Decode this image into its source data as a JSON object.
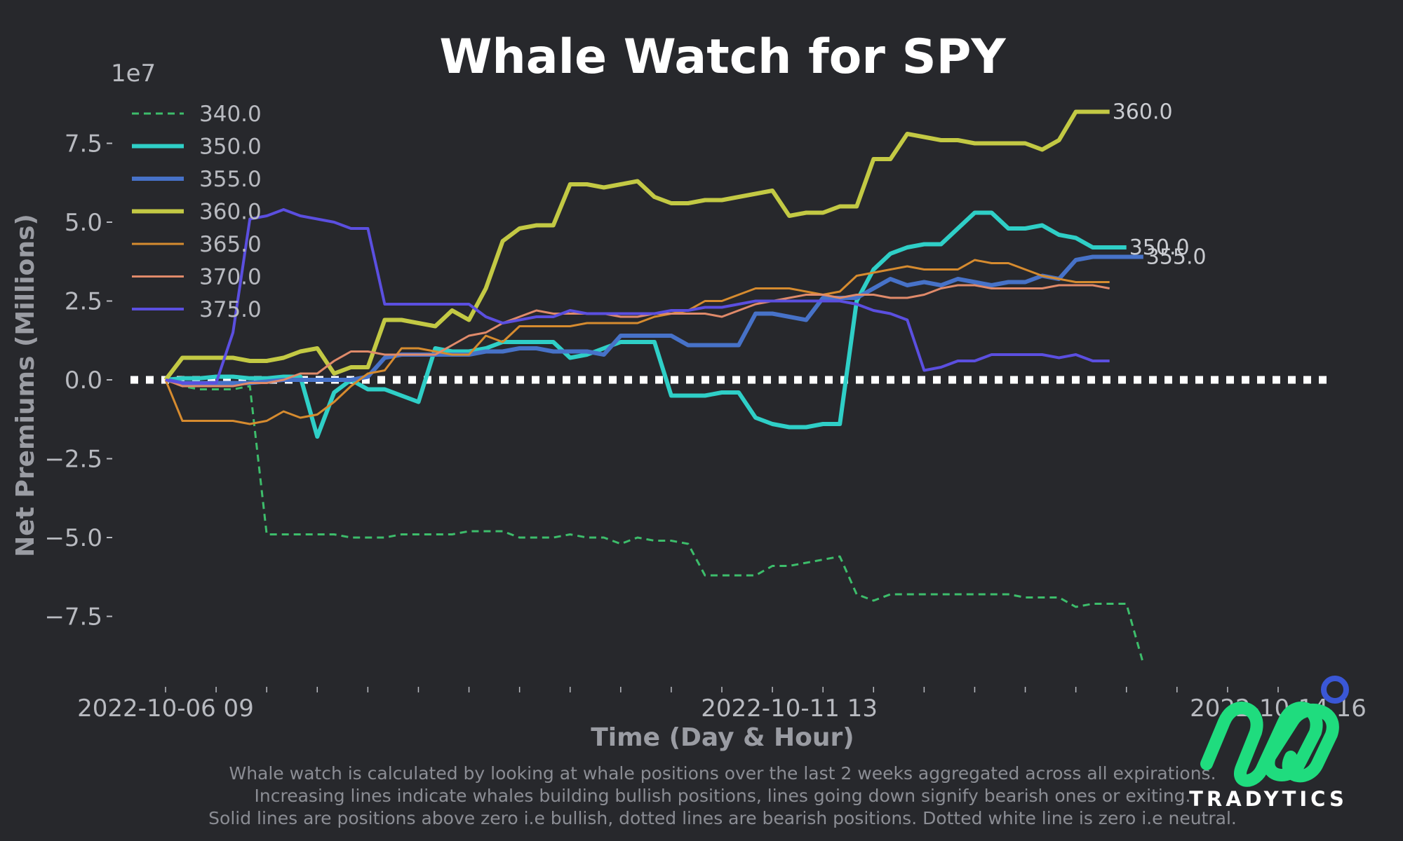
{
  "chart_data": {
    "type": "line",
    "title": "Whale Watch for SPY",
    "xlabel": "Time (Day & Hour)",
    "ylabel": "Net Premiums (Millions)",
    "y_offset_label": "1e7",
    "ylim": [
      -9.5,
      9.5
    ],
    "yticks": [
      "7.5",
      "5.0",
      "2.5",
      "0.0",
      "−2.5",
      "−5.0",
      "−7.5"
    ],
    "ytick_values": [
      7.5,
      5.0,
      2.5,
      0.0,
      -2.5,
      -5.0,
      -7.5
    ],
    "xtick_labels": [
      "2022-10-06 09",
      "2022-10-11 13",
      "2022-10-14 16"
    ],
    "xtick_index": [
      0,
      37,
      66
    ],
    "x_count": 66,
    "zero_line": true,
    "legend_position": "upper-left",
    "series": [
      {
        "name": "340.0",
        "color": "#3dbd6b",
        "style": "dashed",
        "width": 3,
        "values": [
          0,
          -0.2,
          -0.3,
          -0.3,
          -0.3,
          -0.2,
          -4.9,
          -4.9,
          -4.9,
          -4.9,
          -4.9,
          -5.0,
          -5.0,
          -5.0,
          -4.9,
          -4.9,
          -4.9,
          -4.9,
          -4.8,
          -4.8,
          -4.8,
          -5.0,
          -5.0,
          -5.0,
          -4.9,
          -5.0,
          -5.0,
          -5.2,
          -5.0,
          -5.1,
          -5.1,
          -5.2,
          -6.2,
          -6.2,
          -6.2,
          -6.2,
          -5.9,
          -5.9,
          -5.8,
          -5.7,
          -5.6,
          -6.8,
          -7.0,
          -6.8,
          -6.8,
          -6.8,
          -6.8,
          -6.8,
          -6.8,
          -6.8,
          -6.8,
          -6.9,
          -6.9,
          -6.9,
          -7.2,
          -7.1,
          -7.1,
          -7.1,
          -9.0
        ]
      },
      {
        "name": "350.0",
        "color": "#2fcfc7",
        "style": "solid",
        "width": 6,
        "values": [
          0,
          0.05,
          0.05,
          0.1,
          0.1,
          0.05,
          0.05,
          0.1,
          0.1,
          -1.8,
          -0.4,
          0,
          -0.3,
          -0.3,
          -0.5,
          -0.7,
          1.0,
          0.9,
          0.9,
          1.0,
          1.2,
          1.2,
          1.2,
          1.2,
          0.7,
          0.8,
          1.0,
          1.2,
          1.2,
          1.2,
          -0.5,
          -0.5,
          -0.5,
          -0.4,
          -0.4,
          -1.2,
          -1.4,
          -1.5,
          -1.5,
          -1.4,
          -1.4,
          2.5,
          3.5,
          4.0,
          4.2,
          4.3,
          4.3,
          4.8,
          5.3,
          5.3,
          4.8,
          4.8,
          4.9,
          4.6,
          4.5,
          4.2,
          4.2,
          4.2
        ]
      },
      {
        "name": "355.0",
        "color": "#4772c8",
        "style": "solid",
        "width": 6,
        "values": [
          0,
          -0.1,
          -0.1,
          -0.1,
          -0.1,
          -0.1,
          -0.05,
          0,
          0,
          0,
          0,
          0,
          0.1,
          0.7,
          0.8,
          0.8,
          0.8,
          0.8,
          0.8,
          0.9,
          0.9,
          1.0,
          1.0,
          0.9,
          0.9,
          0.9,
          0.8,
          1.4,
          1.4,
          1.4,
          1.4,
          1.1,
          1.1,
          1.1,
          1.1,
          2.1,
          2.1,
          2.0,
          1.9,
          2.6,
          2.6,
          2.6,
          2.9,
          3.2,
          3.0,
          3.1,
          3.0,
          3.2,
          3.1,
          3.0,
          3.1,
          3.1,
          3.3,
          3.2,
          3.8,
          3.9,
          3.9,
          3.9,
          3.9
        ]
      },
      {
        "name": "360.0",
        "color": "#c3c944",
        "style": "solid",
        "width": 6,
        "values": [
          0,
          0.7,
          0.7,
          0.7,
          0.7,
          0.6,
          0.6,
          0.7,
          0.9,
          1.0,
          0.2,
          0.4,
          0.4,
          1.9,
          1.9,
          1.8,
          1.7,
          2.2,
          1.9,
          2.9,
          4.4,
          4.8,
          4.9,
          4.9,
          6.2,
          6.2,
          6.1,
          6.2,
          6.3,
          5.8,
          5.6,
          5.6,
          5.7,
          5.7,
          5.8,
          5.9,
          6.0,
          5.2,
          5.3,
          5.3,
          5.5,
          5.5,
          7.0,
          7.0,
          7.8,
          7.7,
          7.6,
          7.6,
          7.5,
          7.5,
          7.5,
          7.5,
          7.3,
          7.6,
          8.5,
          8.5,
          8.5
        ]
      },
      {
        "name": "365.0",
        "color": "#d68b2f",
        "style": "solid",
        "width": 3,
        "values": [
          0,
          -1.3,
          -1.3,
          -1.3,
          -1.3,
          -1.4,
          -1.3,
          -1.0,
          -1.2,
          -1.1,
          -0.7,
          -0.2,
          0.2,
          0.3,
          1.0,
          1.0,
          0.9,
          0.8,
          0.8,
          1.4,
          1.2,
          1.7,
          1.7,
          1.7,
          1.7,
          1.8,
          1.8,
          1.8,
          1.8,
          2.0,
          2.1,
          2.2,
          2.5,
          2.5,
          2.7,
          2.9,
          2.9,
          2.9,
          2.8,
          2.7,
          2.8,
          3.3,
          3.4,
          3.5,
          3.6,
          3.5,
          3.5,
          3.5,
          3.8,
          3.7,
          3.7,
          3.5,
          3.3,
          3.2,
          3.1,
          3.1,
          3.1
        ]
      },
      {
        "name": "370.0",
        "color": "#e08a6a",
        "style": "solid",
        "width": 3,
        "values": [
          0,
          -0.2,
          -0.2,
          -0.2,
          -0.2,
          -0.1,
          -0.1,
          0,
          0.2,
          0.2,
          0.6,
          0.9,
          0.9,
          0.8,
          0.8,
          0.8,
          0.8,
          1.1,
          1.4,
          1.5,
          1.8,
          2.0,
          2.2,
          2.1,
          2.1,
          2.1,
          2.1,
          2.0,
          2.0,
          2.1,
          2.1,
          2.1,
          2.1,
          2.0,
          2.2,
          2.4,
          2.5,
          2.6,
          2.7,
          2.7,
          2.6,
          2.7,
          2.7,
          2.6,
          2.6,
          2.7,
          2.9,
          3.0,
          3.0,
          2.9,
          2.9,
          2.9,
          2.9,
          3.0,
          3.0,
          3.0,
          2.9
        ]
      },
      {
        "name": "375.0",
        "color": "#5b4fe0",
        "style": "solid",
        "width": 4,
        "values": [
          0,
          -0.1,
          -0.1,
          -0.1,
          1.5,
          5.1,
          5.2,
          5.4,
          5.2,
          5.1,
          5.0,
          4.8,
          4.8,
          2.4,
          2.4,
          2.4,
          2.4,
          2.4,
          2.4,
          2.0,
          1.8,
          1.9,
          2.0,
          2.0,
          2.2,
          2.1,
          2.1,
          2.1,
          2.1,
          2.1,
          2.2,
          2.2,
          2.3,
          2.3,
          2.4,
          2.5,
          2.5,
          2.5,
          2.5,
          2.5,
          2.5,
          2.4,
          2.2,
          2.1,
          1.9,
          0.3,
          0.4,
          0.6,
          0.6,
          0.8,
          0.8,
          0.8,
          0.8,
          0.7,
          0.8,
          0.6,
          0.6
        ]
      }
    ],
    "end_labels": [
      "360.0",
      "350.0",
      "355.0"
    ]
  },
  "footer": {
    "line1": "Whale watch is calculated by looking at whale positions over the last 2 weeks aggregated across all expirations.",
    "line2": "Increasing lines indicate whales building bullish positions, lines going down signify bearish ones or exiting.",
    "line3": "Solid lines are positions above zero i.e bullish, dotted lines are bearish positions. Dotted white line is zero i.e neutral."
  },
  "brand": {
    "name": "TRADYTICS",
    "logo_color": "#1fdc7e",
    "badge_color": "#3a57d6"
  }
}
